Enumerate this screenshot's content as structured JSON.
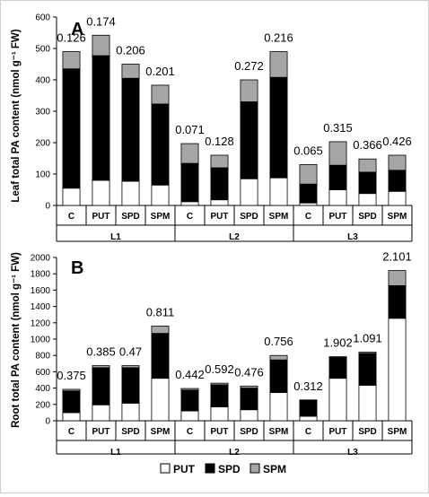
{
  "chart_data": [
    {
      "type": "bar",
      "stacked": true,
      "panel_label": "A",
      "ylabel": "Leaf total PA content (nmol g⁻¹ FW)",
      "ylim": [
        0,
        600
      ],
      "yticks": [
        0,
        100,
        200,
        300,
        400,
        500,
        600
      ],
      "categories": [
        "C",
        "PUT",
        "SPD",
        "SPM",
        "C",
        "PUT",
        "SPD",
        "SPM",
        "C",
        "PUT",
        "SPD",
        "SPM"
      ],
      "groups": [
        "L1",
        "L2",
        "L3"
      ],
      "series": [
        {
          "name": "PUT",
          "values": [
            55,
            80,
            77,
            65,
            12,
            18,
            85,
            88,
            8,
            50,
            38,
            45
          ]
        },
        {
          "name": "SPD",
          "values": [
            380,
            397,
            328,
            258,
            122,
            102,
            245,
            320,
            60,
            78,
            68,
            67
          ]
        },
        {
          "name": "SPM",
          "values": [
            55,
            65,
            45,
            60,
            63,
            40,
            70,
            82,
            62,
            75,
            42,
            48
          ]
        }
      ],
      "annotations": [
        "0.126",
        "0.174",
        "0.206",
        "0.201",
        "0.071",
        "0.128",
        "0.272",
        "0.216",
        "0.065",
        "0.315",
        "0.366",
        "0.426"
      ]
    },
    {
      "type": "bar",
      "stacked": true,
      "panel_label": "B",
      "ylabel": "Root total PA content (nmol g⁻¹ FW)",
      "ylim": [
        0,
        2000
      ],
      "yticks": [
        0,
        200,
        400,
        600,
        800,
        1000,
        1200,
        1400,
        1600,
        1800,
        2000
      ],
      "categories": [
        "C",
        "PUT",
        "SPD",
        "SPM",
        "C",
        "PUT",
        "SPD",
        "SPM",
        "C",
        "PUT",
        "SPD",
        "SPM"
      ],
      "groups": [
        "L1",
        "L2",
        "L3"
      ],
      "series": [
        {
          "name": "PUT",
          "values": [
            100,
            195,
            215,
            520,
            120,
            170,
            135,
            345,
            55,
            520,
            435,
            1255
          ]
        },
        {
          "name": "SPD",
          "values": [
            265,
            455,
            435,
            550,
            255,
            270,
            265,
            400,
            195,
            255,
            390,
            400
          ]
        },
        {
          "name": "SPM",
          "values": [
            20,
            25,
            25,
            90,
            20,
            20,
            25,
            55,
            5,
            10,
            15,
            185
          ]
        }
      ],
      "annotations": [
        "0.375",
        "0.385",
        "0.47",
        "0.811",
        "0.442",
        "0.592",
        "0.476",
        "0.756",
        "0.312",
        "1.902",
        "1.091",
        "2.101"
      ]
    }
  ],
  "legend": [
    {
      "label": "PUT",
      "color": "#ffffff"
    },
    {
      "label": "SPD",
      "color": "#000000"
    },
    {
      "label": "SPM",
      "color": "#a6a6a6"
    }
  ]
}
